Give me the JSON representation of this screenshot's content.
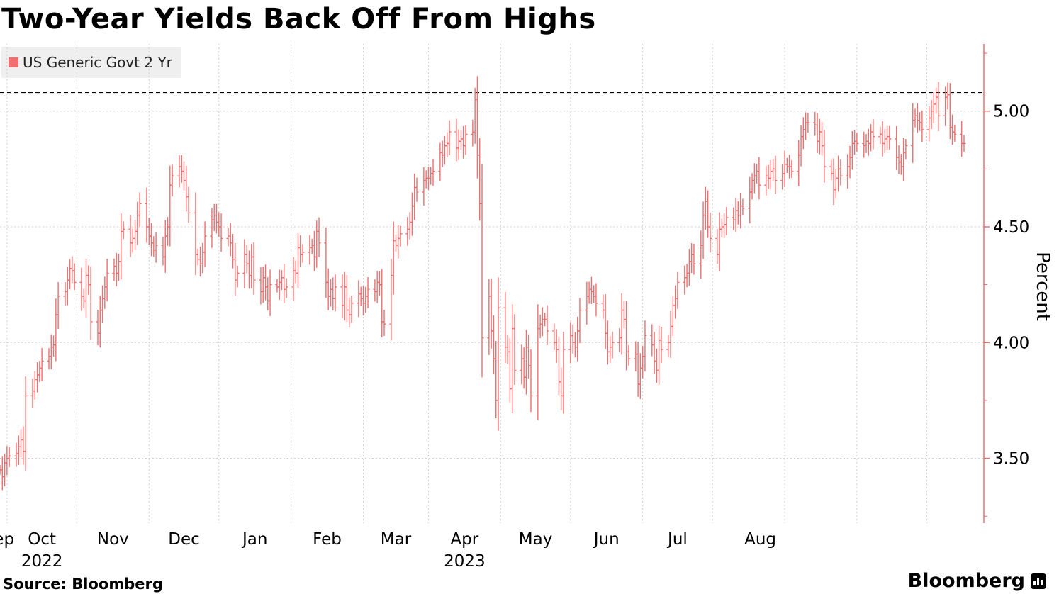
{
  "title": "Two-Year Yields Back Off From Highs",
  "source": "Source: Bloomberg",
  "brand": "Bloomberg",
  "brand_logo_icon": "bloomberg-terminal-icon",
  "colors": {
    "series": "#f26d6d",
    "grid": "#cfcfcf",
    "axis": "#f26d6d",
    "reference": "#000000"
  },
  "chart_data": {
    "type": "ohlc",
    "ylabel": "Percent",
    "y_axis_position": "right",
    "ylim": [
      3.22,
      5.29
    ],
    "yticks": [
      3.5,
      4.0,
      4.5,
      5.0
    ],
    "ytick_labels": [
      "3.50",
      "4.00",
      "4.50",
      "5.00"
    ],
    "grid": true,
    "legend_position": "top-left",
    "x_months": [
      "Sep",
      "Oct",
      "Nov",
      "Dec",
      "Jan",
      "Feb",
      "Mar",
      "Apr",
      "May",
      "Jun",
      "Jul",
      "Aug"
    ],
    "x_years": [
      {
        "label": "2022",
        "under_month": "Oct"
      },
      {
        "label": "2023",
        "under_month": "Apr"
      }
    ],
    "reference_line": {
      "value": 5.08,
      "style": "dashed"
    },
    "series": [
      {
        "name": "US Generic Govt 2 Yr",
        "start_date": "2022-08-29",
        "frequency": "business-day",
        "close": [
          3.45,
          3.42,
          3.48,
          3.5,
          3.51,
          3.52,
          3.55,
          3.58,
          3.53,
          3.77,
          3.79,
          3.84,
          3.86,
          3.89,
          3.92,
          3.94,
          3.98,
          3.99,
          4.12,
          4.2,
          4.22,
          4.27,
          4.32,
          4.31,
          4.26,
          4.2,
          4.18,
          4.29,
          4.25,
          4.09,
          4.04,
          4.14,
          4.19,
          4.24,
          4.3,
          4.33,
          4.3,
          4.35,
          4.48,
          4.49,
          4.43,
          4.45,
          4.48,
          4.55,
          4.6,
          4.5,
          4.46,
          4.43,
          4.4,
          4.42,
          4.37,
          4.46,
          4.5,
          4.68,
          4.72,
          4.76,
          4.74,
          4.7,
          4.63,
          4.56,
          4.38,
          4.36,
          4.34,
          4.39,
          4.46,
          4.53,
          4.55,
          4.52,
          4.5,
          4.45,
          4.46,
          4.43,
          4.36,
          4.27,
          4.3,
          4.38,
          4.34,
          4.29,
          4.37,
          4.27,
          4.22,
          4.28,
          4.24,
          4.18,
          4.25,
          4.24,
          4.26,
          4.28,
          4.23,
          4.24,
          4.31,
          4.3,
          4.41,
          4.38,
          4.39,
          4.41,
          4.42,
          4.37,
          4.48,
          4.43,
          4.26,
          4.2,
          4.23,
          4.19,
          4.24,
          4.16,
          4.24,
          4.14,
          4.12,
          4.17,
          4.21,
          4.19,
          4.17,
          4.2,
          4.23,
          4.22,
          4.26,
          4.25,
          4.09,
          4.08,
          4.29,
          4.44,
          4.42,
          4.45,
          4.47,
          4.49,
          4.52,
          4.59,
          4.67,
          4.65,
          4.7,
          4.71,
          4.71,
          4.73,
          4.74,
          4.82,
          4.81,
          4.85,
          4.86,
          4.91,
          4.84,
          4.87,
          4.88,
          4.85,
          4.9,
          4.91,
          5.05,
          4.81,
          4.6,
          4.02,
          4.2,
          4.05,
          3.93,
          3.75,
          4.15,
          3.98,
          3.96,
          3.8,
          4.06,
          3.88,
          3.93,
          3.85,
          3.98,
          3.9,
          3.77,
          4.06,
          4.08,
          4.1,
          4.1,
          4.05,
          4.0,
          3.97,
          3.83,
          3.77,
          3.97,
          4.03,
          4.0,
          3.98,
          4.05,
          4.14,
          4.2,
          4.23,
          4.22,
          4.2,
          4.17,
          4.14,
          4.04,
          3.96,
          3.98,
          4.0,
          4.02,
          4.14,
          4.1,
          3.96,
          3.93,
          3.95,
          3.82,
          3.89,
          3.94,
          4.03,
          3.99,
          3.92,
          3.88,
          4.01,
          3.97,
          4.0,
          4.07,
          4.16,
          4.19,
          4.26,
          4.28,
          4.3,
          4.35,
          4.38,
          4.34,
          4.42,
          4.55,
          4.61,
          4.5,
          4.45,
          4.38,
          4.49,
          4.5,
          4.51,
          4.54,
          4.53,
          4.57,
          4.55,
          4.59,
          4.58,
          4.65,
          4.7,
          4.72,
          4.74,
          4.68,
          4.72,
          4.71,
          4.74,
          4.75,
          4.7,
          4.73,
          4.77,
          4.76,
          4.76,
          4.74,
          4.81,
          4.89,
          4.92,
          4.95,
          4.95,
          4.94,
          4.87,
          4.91,
          4.85,
          4.76,
          4.73,
          4.66,
          4.71,
          4.75,
          4.72,
          4.76,
          4.8,
          4.86,
          4.87,
          4.86,
          4.85,
          4.87,
          4.86,
          4.91,
          4.89,
          4.9,
          4.86,
          4.88,
          4.89,
          4.88,
          4.8,
          4.78,
          4.76,
          4.82,
          4.85,
          4.96,
          4.98,
          4.96,
          4.95,
          4.92,
          4.97,
          5.0,
          5.03,
          5.06,
          4.98,
          5.06,
          5.07,
          4.93,
          4.91,
          4.9,
          4.86,
          4.86
        ]
      }
    ]
  }
}
